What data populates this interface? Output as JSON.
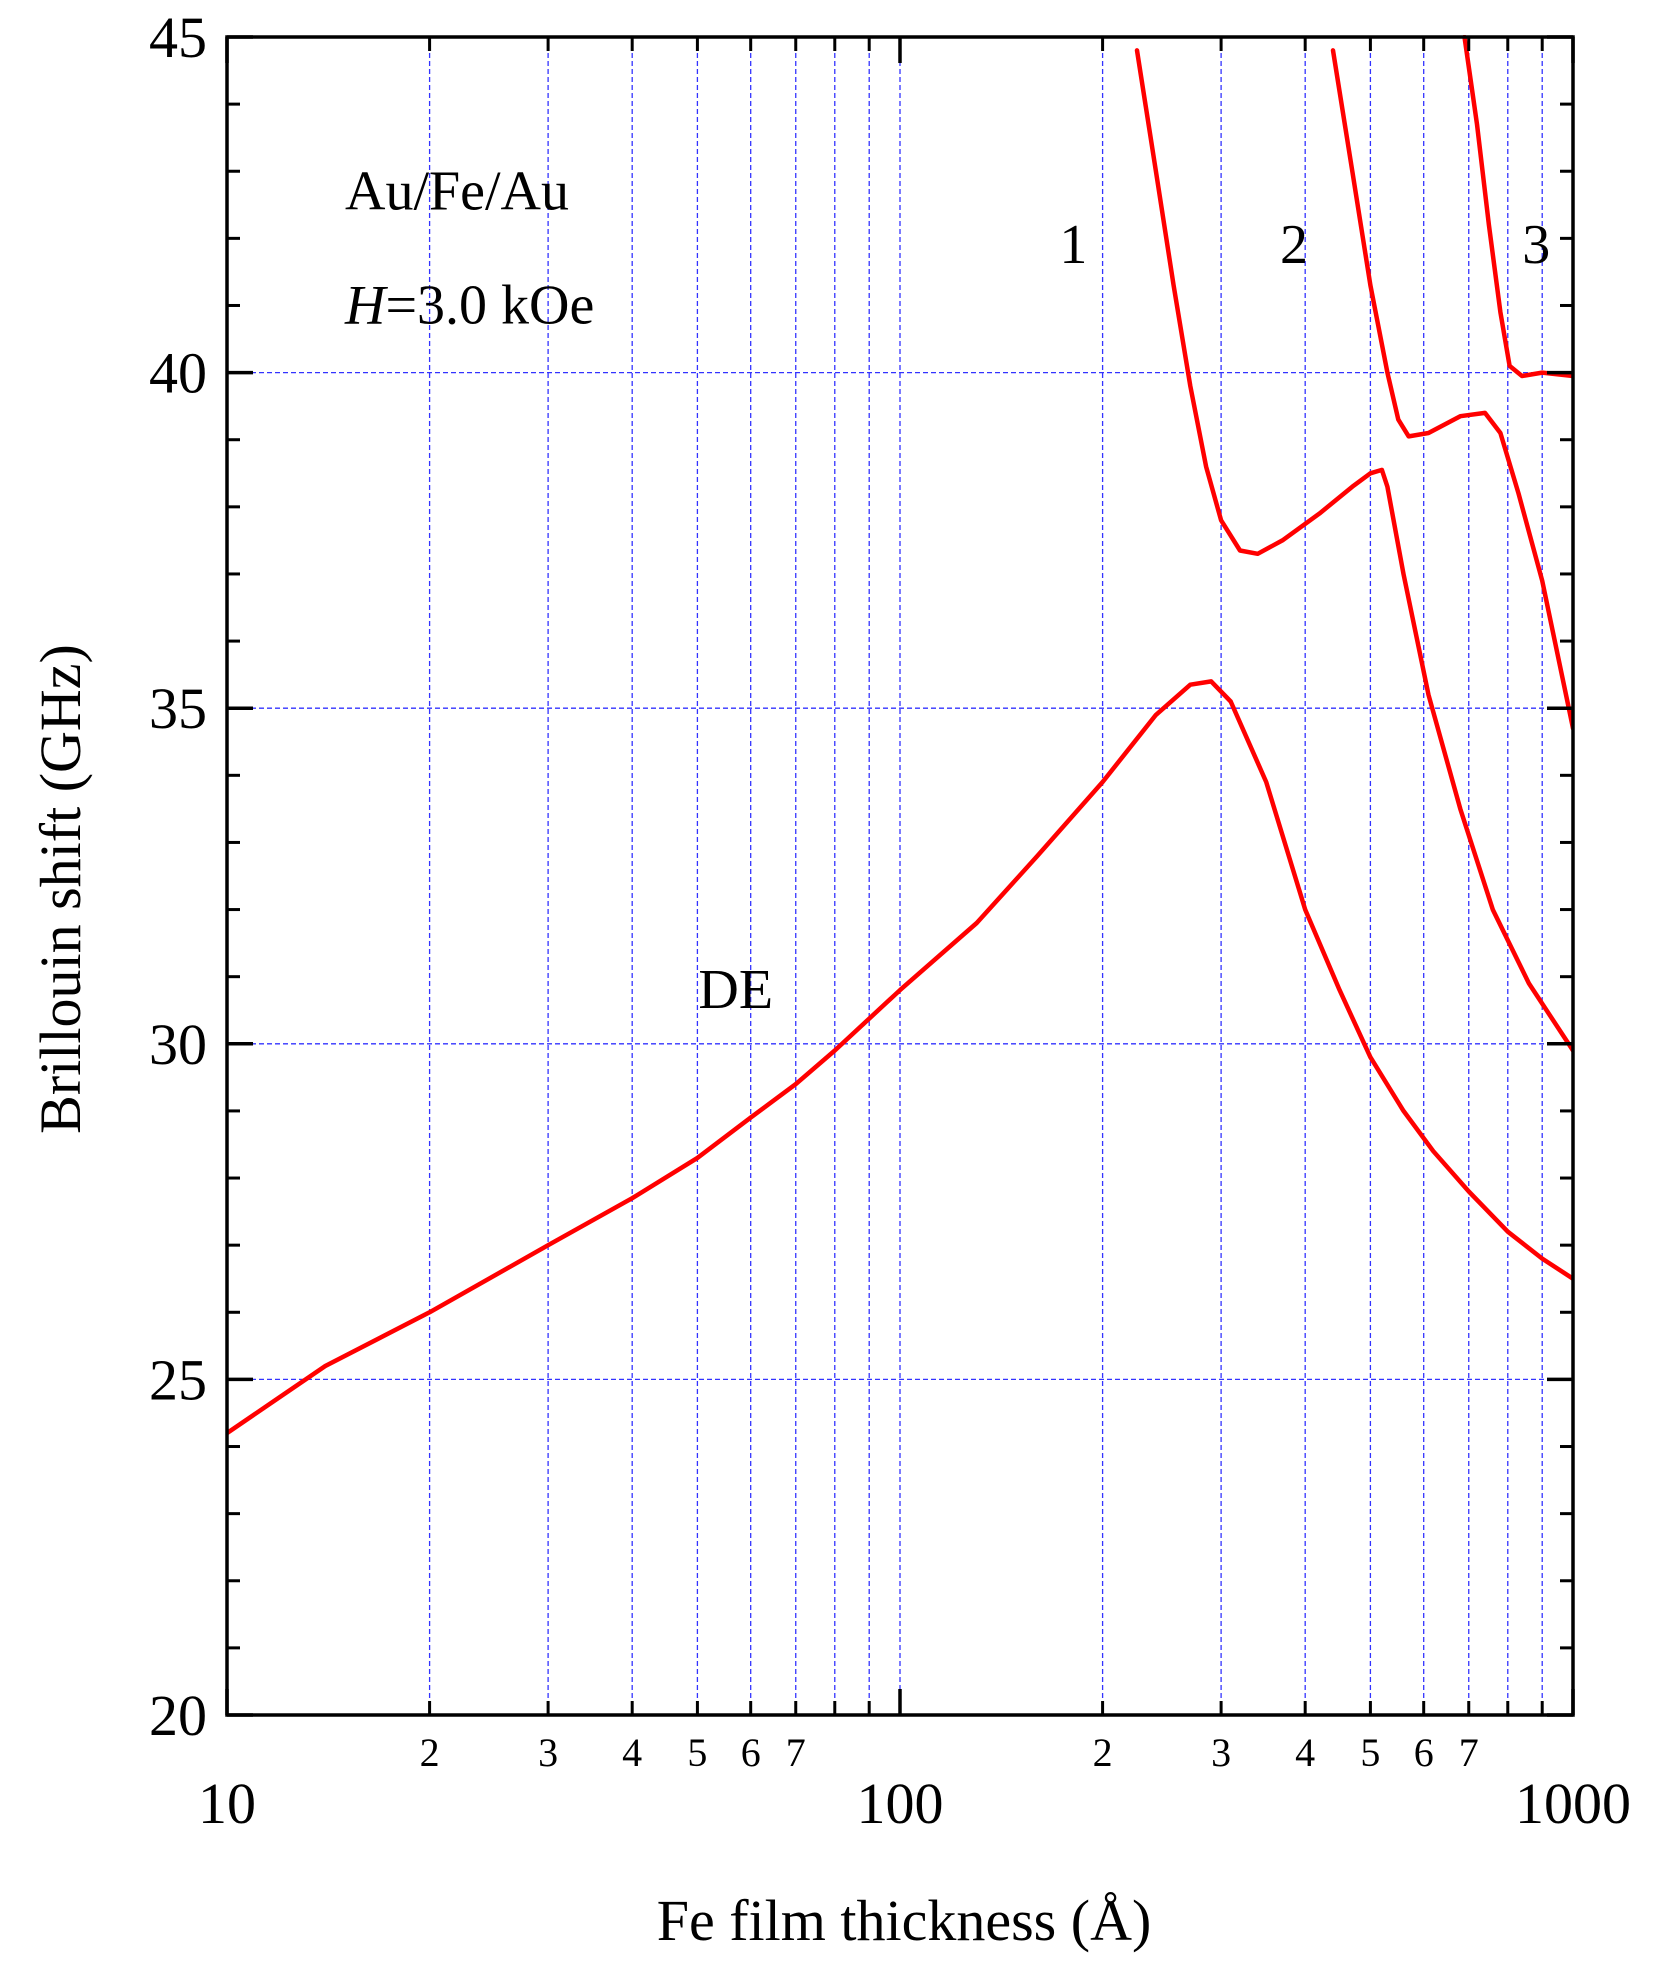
{
  "chart_data": {
    "type": "line",
    "title": "",
    "xlabel": "Fe film thickness (Å)",
    "ylabel": "Brillouin shift (GHz)",
    "x_scale": "log",
    "xlim": [
      10,
      1000
    ],
    "ylim": [
      20,
      45
    ],
    "x_major_ticks": [
      {
        "value": 10,
        "label": "10"
      },
      {
        "value": 100,
        "label": "100"
      },
      {
        "value": 1000,
        "label": "1000"
      }
    ],
    "x_minor_ticks": [
      {
        "value": 20,
        "label": "2"
      },
      {
        "value": 30,
        "label": "3"
      },
      {
        "value": 40,
        "label": "4"
      },
      {
        "value": 50,
        "label": "5"
      },
      {
        "value": 60,
        "label": "6"
      },
      {
        "value": 70,
        "label": "7"
      },
      {
        "value": 80,
        "label": ""
      },
      {
        "value": 90,
        "label": ""
      },
      {
        "value": 200,
        "label": "2"
      },
      {
        "value": 300,
        "label": "3"
      },
      {
        "value": 400,
        "label": "4"
      },
      {
        "value": 500,
        "label": "5"
      },
      {
        "value": 600,
        "label": "6"
      },
      {
        "value": 700,
        "label": "7"
      },
      {
        "value": 800,
        "label": ""
      },
      {
        "value": 900,
        "label": ""
      }
    ],
    "y_ticks": [
      {
        "value": 20,
        "label": "20"
      },
      {
        "value": 25,
        "label": "25"
      },
      {
        "value": 30,
        "label": "30"
      },
      {
        "value": 35,
        "label": "35"
      },
      {
        "value": 40,
        "label": "40"
      },
      {
        "value": 45,
        "label": "45"
      }
    ],
    "grid": true,
    "line_color": "#ff0000",
    "grid_color": "#3333ff",
    "annotations": [
      {
        "text_parts": [
          {
            "text": "Au/Fe/Au",
            "italic": false
          }
        ],
        "x": 10.01,
        "y": 42.7,
        "anchor": "start"
      },
      {
        "text_parts": [
          {
            "text": "H",
            "italic": true
          },
          {
            "text": "=3.0 kOe",
            "italic": false
          }
        ],
        "x": 10.01,
        "y": 41.0,
        "anchor": "start"
      },
      {
        "text_parts": [
          {
            "text": "1",
            "italic": false
          }
        ],
        "x": 181,
        "y": 41.9,
        "anchor": "middle"
      },
      {
        "text_parts": [
          {
            "text": "2",
            "italic": false
          }
        ],
        "x": 385,
        "y": 41.9,
        "anchor": "middle"
      },
      {
        "text_parts": [
          {
            "text": "3",
            "italic": false
          }
        ],
        "x": 882,
        "y": 41.9,
        "anchor": "middle"
      },
      {
        "text_parts": [
          {
            "text": "DE",
            "italic": false
          }
        ],
        "x": 57,
        "y": 30.8,
        "anchor": "middle"
      }
    ],
    "series": [
      {
        "points": [
          [
            10,
            24.2
          ],
          [
            14,
            25.2
          ],
          [
            20,
            26.0
          ],
          [
            30,
            27.0
          ],
          [
            40,
            27.7
          ],
          [
            50,
            28.3
          ],
          [
            60,
            28.9
          ],
          [
            70,
            29.4
          ],
          [
            80,
            29.9
          ],
          [
            100,
            30.8
          ],
          [
            130,
            31.8
          ],
          [
            160,
            32.8
          ],
          [
            200,
            33.9
          ],
          [
            240,
            34.9
          ],
          [
            270,
            35.35
          ],
          [
            290,
            35.4
          ],
          [
            310,
            35.1
          ],
          [
            350,
            33.9
          ],
          [
            400,
            32.0
          ],
          [
            450,
            30.8
          ],
          [
            500,
            29.8
          ],
          [
            560,
            29.0
          ],
          [
            620,
            28.4
          ],
          [
            700,
            27.8
          ],
          [
            800,
            27.2
          ],
          [
            900,
            26.8
          ],
          [
            1000,
            26.5
          ]
        ]
      },
      {
        "points": [
          [
            225,
            44.8
          ],
          [
            240,
            43.0
          ],
          [
            255,
            41.3
          ],
          [
            270,
            39.8
          ],
          [
            285,
            38.6
          ],
          [
            300,
            37.8
          ],
          [
            320,
            37.35
          ],
          [
            340,
            37.3
          ],
          [
            370,
            37.5
          ],
          [
            420,
            37.9
          ],
          [
            470,
            38.3
          ],
          [
            500,
            38.5
          ],
          [
            520,
            38.55
          ],
          [
            530,
            38.3
          ],
          [
            560,
            37.0
          ],
          [
            610,
            35.2
          ],
          [
            680,
            33.5
          ],
          [
            760,
            32.0
          ],
          [
            860,
            30.9
          ],
          [
            1000,
            29.9
          ]
        ]
      },
      {
        "points": [
          [
            440,
            44.8
          ],
          [
            470,
            43.0
          ],
          [
            500,
            41.3
          ],
          [
            530,
            40.0
          ],
          [
            550,
            39.3
          ],
          [
            570,
            39.05
          ],
          [
            610,
            39.1
          ],
          [
            680,
            39.35
          ],
          [
            740,
            39.4
          ],
          [
            780,
            39.1
          ],
          [
            830,
            38.2
          ],
          [
            900,
            36.9
          ],
          [
            1000,
            34.7
          ]
        ]
      },
      {
        "points": [
          [
            690,
            45.0
          ],
          [
            720,
            43.7
          ],
          [
            750,
            42.2
          ],
          [
            780,
            40.9
          ],
          [
            805,
            40.1
          ],
          [
            840,
            39.95
          ],
          [
            900,
            40.0
          ],
          [
            1000,
            39.95
          ]
        ]
      }
    ]
  }
}
